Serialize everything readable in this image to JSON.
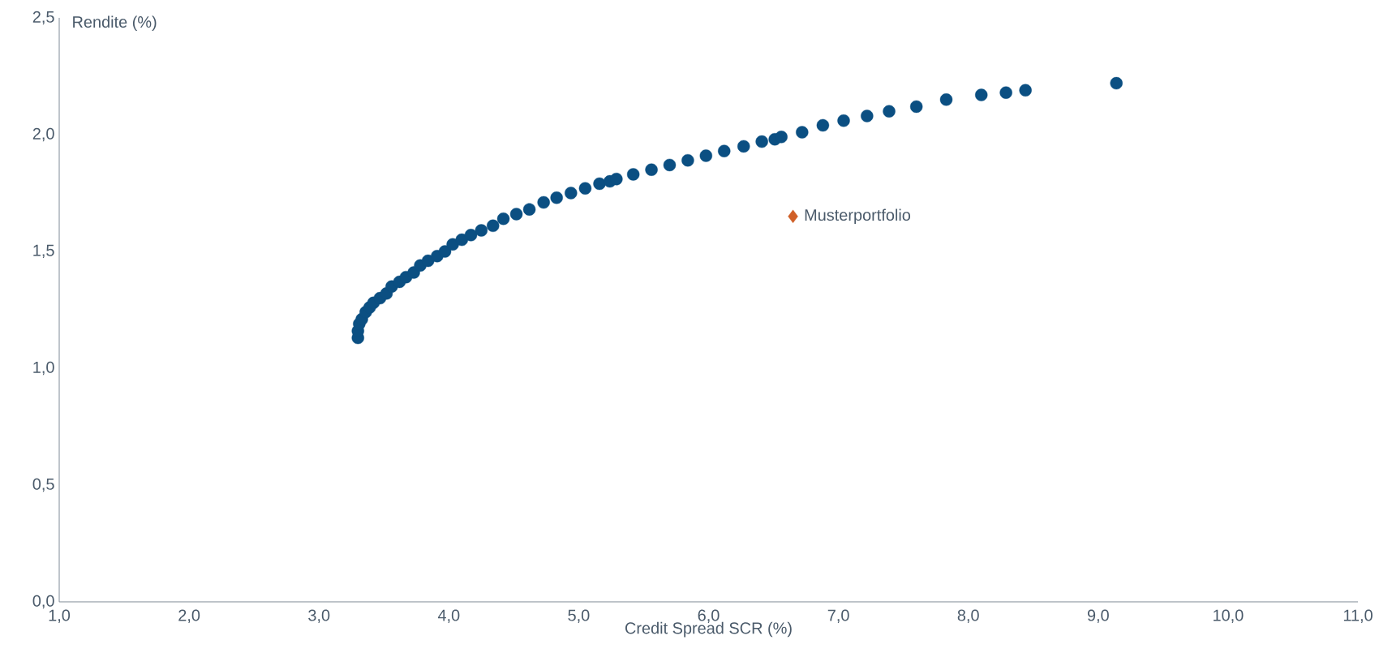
{
  "chart_data": {
    "type": "scatter",
    "xlabel": "Credit Spread SCR (%)",
    "ylabel": "Rendite (%)",
    "xlim": [
      1,
      11
    ],
    "ylim": [
      0,
      2.5
    ],
    "xticks": [
      {
        "value": 1,
        "label": "1,0"
      },
      {
        "value": 2,
        "label": "2,0"
      },
      {
        "value": 3,
        "label": "3,0"
      },
      {
        "value": 4,
        "label": "4,0"
      },
      {
        "value": 5,
        "label": "5,0"
      },
      {
        "value": 6,
        "label": "6,0"
      },
      {
        "value": 7,
        "label": "7,0"
      },
      {
        "value": 8,
        "label": "8,0"
      },
      {
        "value": 9,
        "label": "9,0"
      },
      {
        "value": 10,
        "label": "10,0"
      },
      {
        "value": 11,
        "label": "11,0"
      }
    ],
    "yticks": [
      {
        "value": 0,
        "label": "0,0"
      },
      {
        "value": 0.5,
        "label": "0,5"
      },
      {
        "value": 1,
        "label": "1,0"
      },
      {
        "value": 1.5,
        "label": "1,5"
      },
      {
        "value": 2,
        "label": "2,0"
      },
      {
        "value": 2.5,
        "label": "2,5"
      }
    ],
    "grid": false,
    "series": [
      {
        "color": "#0b4f82",
        "marker": "circle",
        "x": [
          3.3,
          3.3,
          3.31,
          3.33,
          3.36,
          3.39,
          3.42,
          3.47,
          3.52,
          3.56,
          3.62,
          3.67,
          3.73,
          3.78,
          3.84,
          3.91,
          3.97,
          4.03,
          4.1,
          4.17,
          4.25,
          4.34,
          4.42,
          4.52,
          4.62,
          4.73,
          4.83,
          4.94,
          5.05,
          5.16,
          5.24,
          5.29,
          5.42,
          5.56,
          5.7,
          5.84,
          5.98,
          6.12,
          6.27,
          6.41,
          6.51,
          6.56,
          6.72,
          6.88,
          7.04,
          7.22,
          7.39,
          7.6,
          7.83,
          8.1,
          8.29,
          8.44,
          9.14
        ],
        "values": [
          1.13,
          1.16,
          1.19,
          1.21,
          1.24,
          1.26,
          1.28,
          1.3,
          1.32,
          1.35,
          1.37,
          1.39,
          1.41,
          1.44,
          1.46,
          1.48,
          1.5,
          1.53,
          1.55,
          1.57,
          1.59,
          1.61,
          1.64,
          1.66,
          1.68,
          1.71,
          1.73,
          1.75,
          1.77,
          1.79,
          1.8,
          1.81,
          1.83,
          1.85,
          1.87,
          1.89,
          1.91,
          1.93,
          1.95,
          1.97,
          1.98,
          1.99,
          2.01,
          2.04,
          2.06,
          2.08,
          2.1,
          2.12,
          2.15,
          2.17,
          2.18,
          2.19,
          2.22
        ]
      },
      {
        "name": "Musterportfolio",
        "color": "#d05f27",
        "marker": "diamond",
        "x": [
          6.65
        ],
        "values": [
          1.65
        ]
      }
    ]
  }
}
